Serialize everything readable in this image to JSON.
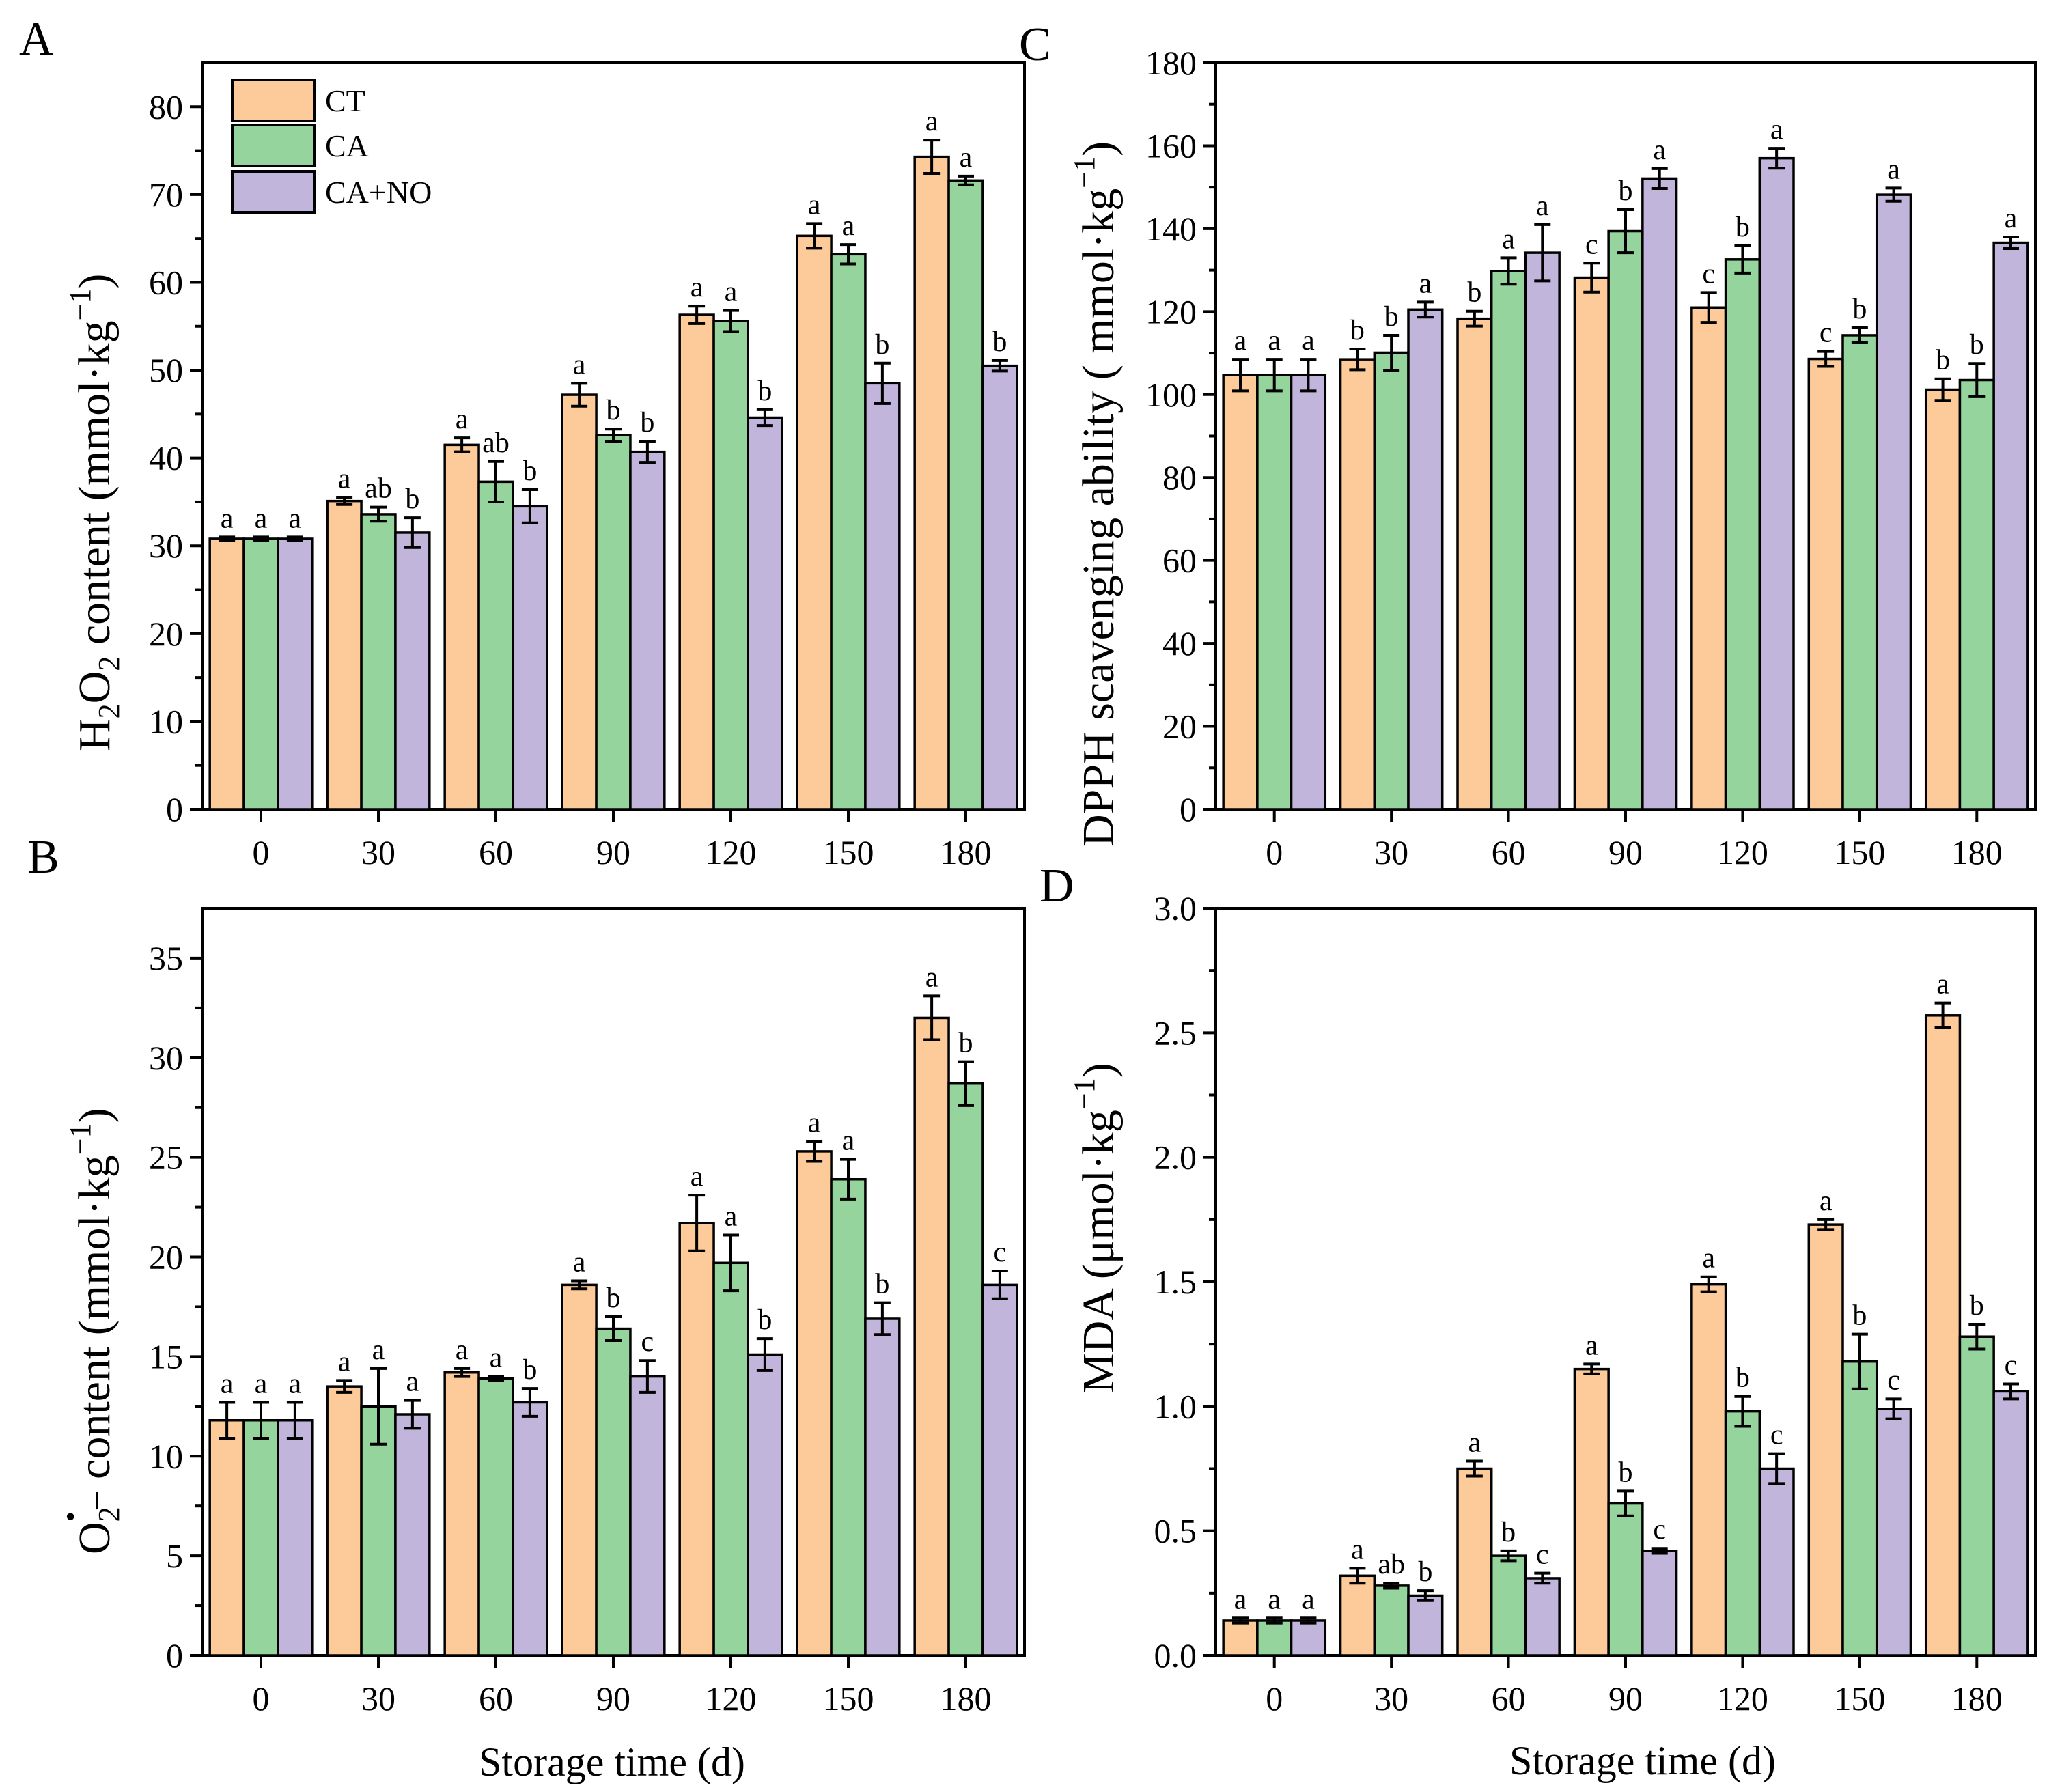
{
  "colors": {
    "CT": "#FDCA9A",
    "CA": "#95D59D",
    "CA+NO": "#C2B5DC",
    "stroke": "#000000"
  },
  "legend": [
    "CT",
    "CA",
    "CA+NO"
  ],
  "chart_data": [
    {
      "panel": "A",
      "type": "bar",
      "categories": [
        "0",
        "30",
        "60",
        "90",
        "120",
        "150",
        "180"
      ],
      "ylim": [
        0,
        85
      ],
      "yticks": [
        0,
        10,
        20,
        30,
        40,
        50,
        60,
        70,
        80
      ],
      "ylabel": "H2O2 content (mmol·kg−1)",
      "xlabel": "",
      "legend_placement": "top-left",
      "series": [
        {
          "name": "CT",
          "values": [
            30.8,
            35.1,
            41.5,
            47.2,
            56.3,
            65.3,
            74.3
          ],
          "errors": [
            0.2,
            0.4,
            0.8,
            1.3,
            1.0,
            1.4,
            1.9
          ],
          "letters": [
            "a",
            "a",
            "a",
            "a",
            "a",
            "a",
            "a"
          ]
        },
        {
          "name": "CA",
          "values": [
            30.8,
            33.6,
            37.3,
            42.6,
            55.6,
            63.2,
            71.6
          ],
          "errors": [
            0.2,
            0.8,
            2.3,
            0.7,
            1.2,
            1.1,
            0.5
          ],
          "letters": [
            "a",
            "ab",
            "ab",
            "b",
            "a",
            "a",
            "a"
          ]
        },
        {
          "name": "CA+NO",
          "values": [
            30.8,
            31.5,
            34.5,
            40.7,
            44.6,
            48.5,
            50.5
          ],
          "errors": [
            0.2,
            1.7,
            1.9,
            1.2,
            0.9,
            2.3,
            0.6
          ],
          "letters": [
            "a",
            "b",
            "b",
            "b",
            "b",
            "b",
            "b"
          ]
        }
      ]
    },
    {
      "panel": "C",
      "type": "bar",
      "categories": [
        "0",
        "30",
        "60",
        "90",
        "120",
        "150",
        "180"
      ],
      "ylim": [
        0,
        180
      ],
      "yticks": [
        0,
        20,
        40,
        60,
        80,
        100,
        120,
        140,
        160,
        180
      ],
      "ylabel": "DPPH scavenging ability ( mmol·kg−1)",
      "xlabel": "",
      "series": [
        {
          "name": "CT",
          "values": [
            104.7,
            108.5,
            118.3,
            128.2,
            121.0,
            108.6,
            101.2
          ],
          "errors": [
            3.8,
            2.5,
            1.8,
            3.5,
            3.6,
            1.8,
            2.6
          ],
          "letters": [
            "a",
            "b",
            "b",
            "c",
            "c",
            "c",
            "b"
          ]
        },
        {
          "name": "CA",
          "values": [
            104.7,
            110.1,
            129.8,
            139.4,
            132.6,
            114.3,
            103.5
          ],
          "errors": [
            3.8,
            4.2,
            3.2,
            5.2,
            3.3,
            1.8,
            4.0
          ],
          "letters": [
            "a",
            "b",
            "a",
            "b",
            "b",
            "b",
            "b"
          ]
        },
        {
          "name": "CA+NO",
          "values": [
            104.7,
            120.5,
            134.2,
            152.1,
            157.0,
            148.2,
            136.6
          ],
          "errors": [
            3.8,
            1.8,
            6.8,
            2.4,
            2.4,
            1.6,
            1.4
          ],
          "letters": [
            "a",
            "a",
            "a",
            "a",
            "a",
            "a",
            "a"
          ]
        }
      ]
    },
    {
      "panel": "B",
      "type": "bar",
      "categories": [
        "0",
        "30",
        "60",
        "90",
        "120",
        "150",
        "180"
      ],
      "ylim": [
        0,
        37.5
      ],
      "yticks": [
        0,
        5,
        10,
        15,
        20,
        25,
        30,
        35
      ],
      "ylabel": "O2•− content (mmol·kg−1)",
      "xlabel": "Storage time (d)",
      "series": [
        {
          "name": "CT",
          "values": [
            11.8,
            13.5,
            14.2,
            18.6,
            21.7,
            25.3,
            32.0
          ],
          "errors": [
            0.9,
            0.3,
            0.2,
            0.2,
            1.4,
            0.5,
            1.1
          ],
          "letters": [
            "a",
            "a",
            "a",
            "a",
            "a",
            "a",
            "a"
          ]
        },
        {
          "name": "CA",
          "values": [
            11.8,
            12.5,
            13.9,
            16.4,
            19.7,
            23.9,
            28.7
          ],
          "errors": [
            0.9,
            1.9,
            0.1,
            0.6,
            1.4,
            1.0,
            1.1
          ],
          "letters": [
            "a",
            "a",
            "a",
            "b",
            "a",
            "a",
            "b"
          ]
        },
        {
          "name": "CA+NO",
          "values": [
            11.8,
            12.1,
            12.7,
            14.0,
            15.1,
            16.9,
            18.6
          ],
          "errors": [
            0.9,
            0.7,
            0.7,
            0.8,
            0.8,
            0.8,
            0.7
          ],
          "letters": [
            "a",
            "a",
            "b",
            "c",
            "b",
            "b",
            "c"
          ]
        }
      ]
    },
    {
      "panel": "D",
      "type": "bar",
      "categories": [
        "0",
        "30",
        "60",
        "90",
        "120",
        "150",
        "180"
      ],
      "ylim": [
        0,
        3.0
      ],
      "yticks": [
        0.0,
        0.5,
        1.0,
        1.5,
        2.0,
        2.5,
        3.0
      ],
      "ylabel": "MDA (μmol·kg−1)",
      "xlabel": "Storage time (d)",
      "series": [
        {
          "name": "CT",
          "values": [
            0.14,
            0.32,
            0.75,
            1.15,
            1.49,
            1.73,
            2.57
          ],
          "errors": [
            0.01,
            0.03,
            0.03,
            0.02,
            0.03,
            0.02,
            0.05
          ],
          "letters": [
            "a",
            "a",
            "a",
            "a",
            "a",
            "a",
            "a"
          ]
        },
        {
          "name": "CA",
          "values": [
            0.14,
            0.28,
            0.4,
            0.61,
            0.98,
            1.18,
            1.28
          ],
          "errors": [
            0.01,
            0.01,
            0.02,
            0.05,
            0.06,
            0.11,
            0.05
          ],
          "letters": [
            "a",
            "ab",
            "b",
            "b",
            "b",
            "b",
            "b"
          ]
        },
        {
          "name": "CA+NO",
          "values": [
            0.14,
            0.24,
            0.31,
            0.42,
            0.75,
            0.99,
            1.06
          ],
          "errors": [
            0.01,
            0.02,
            0.02,
            0.01,
            0.06,
            0.04,
            0.03
          ],
          "letters": [
            "a",
            "b",
            "c",
            "c",
            "c",
            "c",
            "c"
          ]
        }
      ]
    }
  ]
}
